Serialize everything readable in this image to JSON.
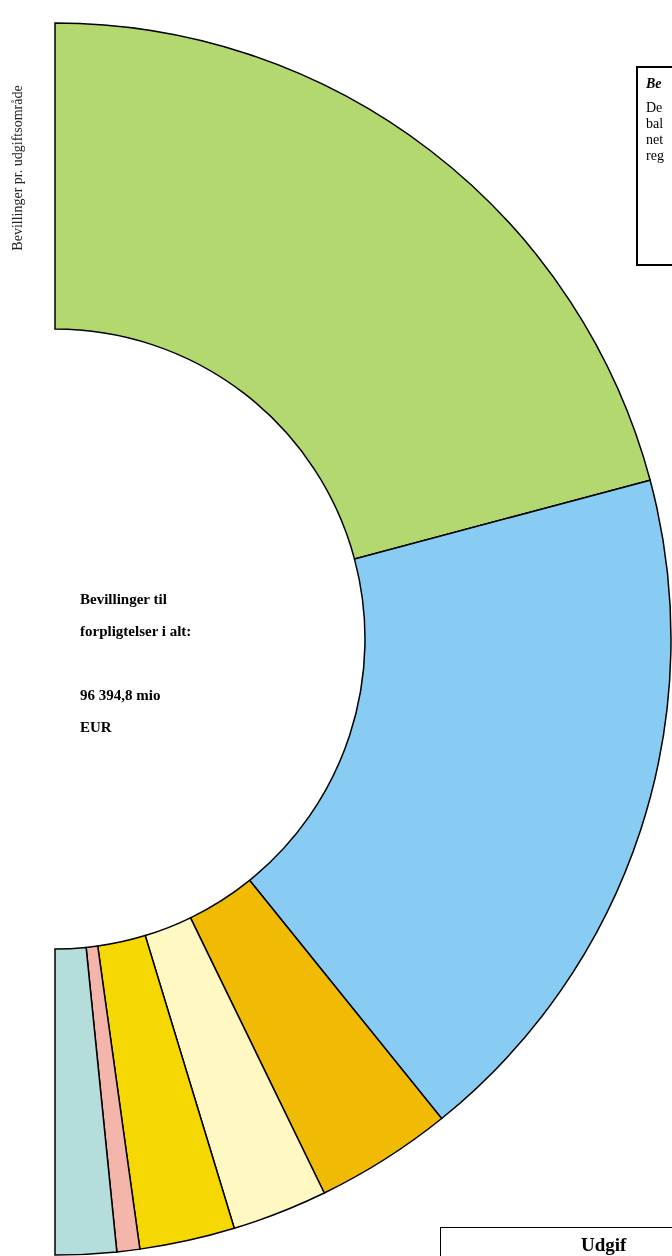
{
  "chart_data": {
    "type": "donut",
    "title": "Bevillinger pr. udgiftsområde",
    "categories": [
      null,
      null,
      null,
      null,
      null,
      null,
      null
    ],
    "values": [
      41.7,
      36.7,
      7.2,
      5.0,
      5.0,
      1.2,
      3.2
    ],
    "colors": [
      "#b3d86f",
      "#88cbf3",
      "#f1bb03",
      "#fff8c3",
      "#f5d701",
      "#f4b6ab",
      "#b5dddb"
    ],
    "annotations": [
      "Bevillinger til forpligtelser i alt:",
      "96 394,8 mio EUR",
      "Be",
      "De",
      "bal",
      "net",
      "reg",
      "Udgif"
    ]
  }
}
